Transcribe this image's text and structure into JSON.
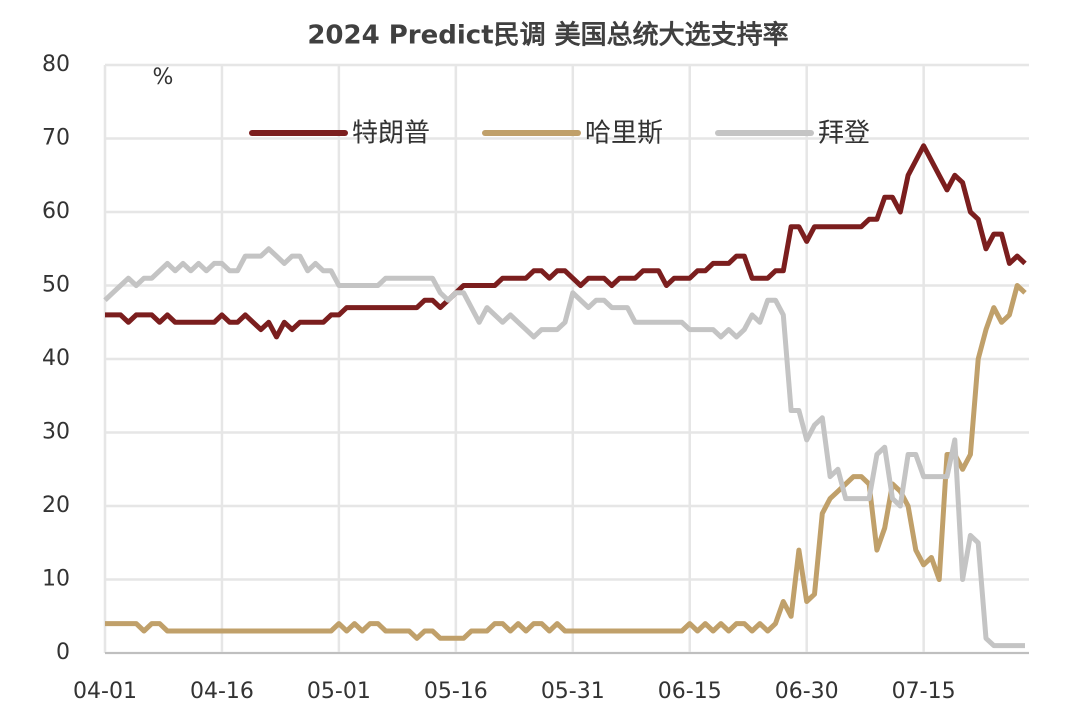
{
  "chart_data": {
    "type": "line",
    "title": "2024 Predict民调 美国总统大选支持率",
    "y_unit": "%",
    "categories": [
      "04-01",
      null,
      null,
      null,
      null,
      null,
      null,
      null,
      null,
      null,
      null,
      null,
      null,
      null,
      null,
      "04-16",
      null,
      null,
      null,
      null,
      null,
      null,
      null,
      null,
      null,
      null,
      null,
      null,
      null,
      null,
      "05-01",
      null,
      null,
      null,
      null,
      null,
      null,
      null,
      null,
      null,
      null,
      null,
      null,
      null,
      null,
      "05-16",
      null,
      null,
      null,
      null,
      null,
      null,
      null,
      null,
      null,
      null,
      null,
      null,
      null,
      null,
      "05-31",
      null,
      null,
      null,
      null,
      null,
      null,
      null,
      null,
      null,
      null,
      null,
      null,
      null,
      null,
      "06-15",
      null,
      null,
      null,
      null,
      null,
      null,
      null,
      null,
      null,
      null,
      null,
      null,
      null,
      null,
      "06-30",
      null,
      null,
      null,
      null,
      null,
      null,
      null,
      null,
      null,
      null,
      null,
      null,
      null,
      null,
      "07-15",
      null,
      null,
      null,
      null,
      null,
      null,
      null,
      null,
      null,
      null,
      null,
      null,
      null
    ],
    "series": [
      {
        "name": "特朗普",
        "color": "#7b1e1e",
        "values": [
          46,
          46,
          46,
          45,
          46,
          46,
          46,
          45,
          46,
          45,
          45,
          45,
          45,
          45,
          45,
          46,
          45,
          45,
          46,
          45,
          44,
          45,
          43,
          45,
          44,
          45,
          45,
          45,
          45,
          46,
          46,
          47,
          47,
          47,
          47,
          47,
          47,
          47,
          47,
          47,
          47,
          48,
          48,
          47,
          48,
          49,
          50,
          50,
          50,
          50,
          50,
          51,
          51,
          51,
          51,
          52,
          52,
          51,
          52,
          52,
          51,
          50,
          51,
          51,
          51,
          50,
          51,
          51,
          51,
          52,
          52,
          52,
          50,
          51,
          51,
          51,
          52,
          52,
          53,
          53,
          53,
          54,
          54,
          51,
          51,
          51,
          52,
          52,
          58,
          58,
          56,
          58,
          58,
          58,
          58,
          58,
          58,
          58,
          59,
          59,
          62,
          62,
          60,
          65,
          67,
          69,
          67,
          65,
          63,
          65,
          64,
          60,
          59,
          55,
          57,
          57,
          53,
          54,
          53
        ]
      },
      {
        "name": "哈里斯",
        "color": "#c0a06a",
        "values": [
          4,
          4,
          4,
          4,
          4,
          3,
          4,
          4,
          3,
          3,
          3,
          3,
          3,
          3,
          3,
          3,
          3,
          3,
          3,
          3,
          3,
          3,
          3,
          3,
          3,
          3,
          3,
          3,
          3,
          3,
          4,
          3,
          4,
          3,
          4,
          4,
          3,
          3,
          3,
          3,
          2,
          3,
          3,
          2,
          2,
          2,
          2,
          3,
          3,
          3,
          4,
          4,
          3,
          4,
          3,
          4,
          4,
          3,
          4,
          3,
          3,
          3,
          3,
          3,
          3,
          3,
          3,
          3,
          3,
          3,
          3,
          3,
          3,
          3,
          3,
          4,
          3,
          4,
          3,
          4,
          3,
          4,
          4,
          3,
          4,
          3,
          4,
          7,
          5,
          14,
          7,
          8,
          19,
          21,
          22,
          23,
          24,
          24,
          23,
          14,
          17,
          23,
          22,
          20,
          14,
          12,
          13,
          10,
          27,
          27,
          25,
          27,
          40,
          44,
          47,
          45,
          46,
          50,
          49
        ]
      },
      {
        "name": "拜登",
        "color": "#c4c4c4",
        "values": [
          48,
          49,
          50,
          51,
          50,
          51,
          51,
          52,
          53,
          52,
          53,
          52,
          53,
          52,
          53,
          53,
          52,
          52,
          54,
          54,
          54,
          55,
          54,
          53,
          54,
          54,
          52,
          53,
          52,
          52,
          50,
          50,
          50,
          50,
          50,
          50,
          51,
          51,
          51,
          51,
          51,
          51,
          51,
          49,
          48,
          49,
          49,
          47,
          45,
          47,
          46,
          45,
          46,
          45,
          44,
          43,
          44,
          44,
          44,
          45,
          49,
          48,
          47,
          48,
          48,
          47,
          47,
          47,
          45,
          45,
          45,
          45,
          45,
          45,
          45,
          44,
          44,
          44,
          44,
          43,
          44,
          43,
          44,
          46,
          45,
          48,
          48,
          46,
          33,
          33,
          29,
          31,
          32,
          24,
          25,
          21,
          21,
          21,
          21,
          27,
          28,
          21,
          20,
          27,
          27,
          24,
          24,
          24,
          24,
          29,
          10,
          16,
          15,
          2,
          1,
          1,
          1,
          1,
          1
        ]
      }
    ],
    "ylim": [
      0,
      80
    ],
    "yticks": [
      0,
      10,
      20,
      30,
      40,
      50,
      60,
      70,
      80
    ],
    "grid": true,
    "legend": "top"
  }
}
